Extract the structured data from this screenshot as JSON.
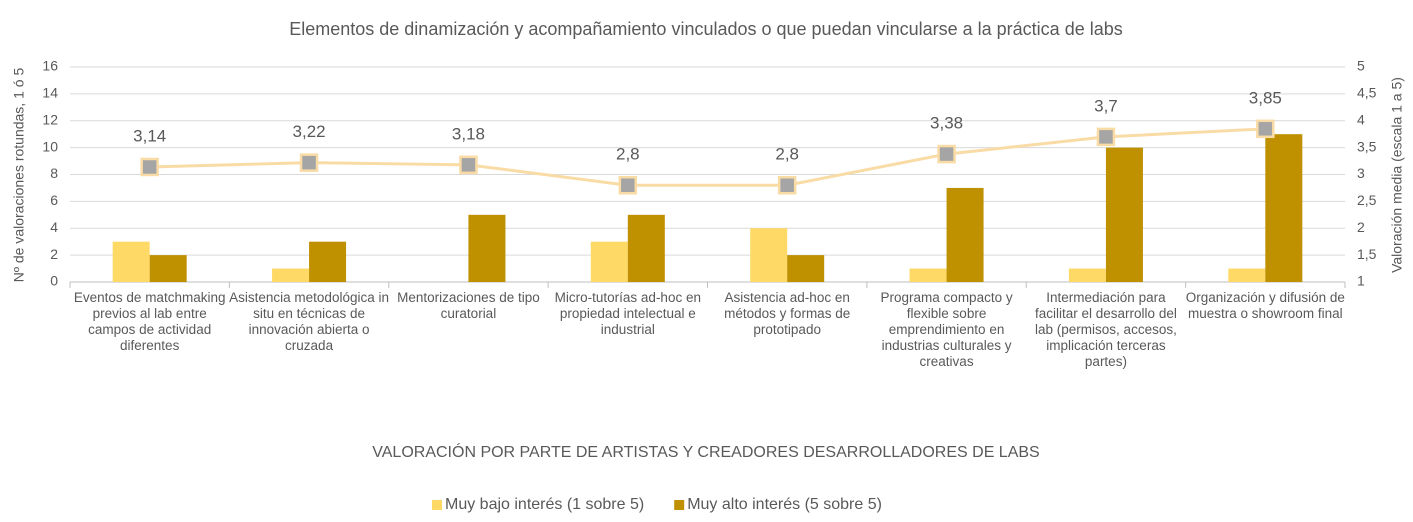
{
  "chart_data": {
    "type": "bar",
    "title": "Elementos de dinamización y acompañamiento vinculados o que puedan vincularse a la práctica de labs",
    "xlabel": "VALORACIÓN  POR PARTE DE ARTISTAS Y CREADORES DESARROLLADORES  DE LABS",
    "ylabel": "Nº de valoraciones rotundas, 1 ó 5",
    "y2label": "Valoración media (escala 1 a 5)",
    "categories": [
      "Eventos de matchmaking previos al lab entre campos de actividad diferentes",
      "Asistencia metodológica in situ en técnicas de innovación abierta o cruzada",
      "Mentorizaciones de tipo curatorial",
      "Micro-tutorías ad-hoc en propiedad intelectual e industrial",
      "Asistencia ad-hoc en métodos y formas de prototipado",
      "Programa compacto y flexible sobre emprendimiento en industrias culturales y creativas",
      "Intermediación para facilitar el desarrollo del lab (permisos, accesos, implicación terceras partes)",
      "Organización y difusión de muestra o showroom final"
    ],
    "series": [
      {
        "name": "Muy bajo interés (1 sobre 5)",
        "color": "#ffd966",
        "values": [
          3,
          1,
          0,
          3,
          4,
          1,
          1,
          1
        ]
      },
      {
        "name": "Muy alto interés (5 sobre 5)",
        "color": "#bf9000",
        "values": [
          2,
          3,
          5,
          5,
          2,
          7,
          10,
          11
        ]
      }
    ],
    "line": {
      "type": "line",
      "axis": "y2",
      "color": "#f9dba5",
      "marker_color": "#a5a5a5",
      "values": [
        3.14,
        3.22,
        3.18,
        2.8,
        2.8,
        3.38,
        3.7,
        3.85
      ],
      "value_labels": [
        "3,14",
        "3,22",
        "3,18",
        "2,8",
        "2,8",
        "3,38",
        "3,7",
        "3,85"
      ]
    },
    "ylim": [
      0,
      16
    ],
    "yticks": [
      0,
      2,
      4,
      6,
      8,
      10,
      12,
      14,
      16
    ],
    "y2lim": [
      1,
      5
    ],
    "y2ticks": [
      1,
      {
        "value": 1.5,
        "label": "1,5"
      },
      2,
      {
        "value": 2.5,
        "label": "2,5"
      },
      3,
      {
        "value": 3.5,
        "label": "3,5"
      },
      4,
      {
        "value": 4.5,
        "label": "4,5"
      },
      5
    ],
    "grid": true,
    "legend": "bottom"
  }
}
